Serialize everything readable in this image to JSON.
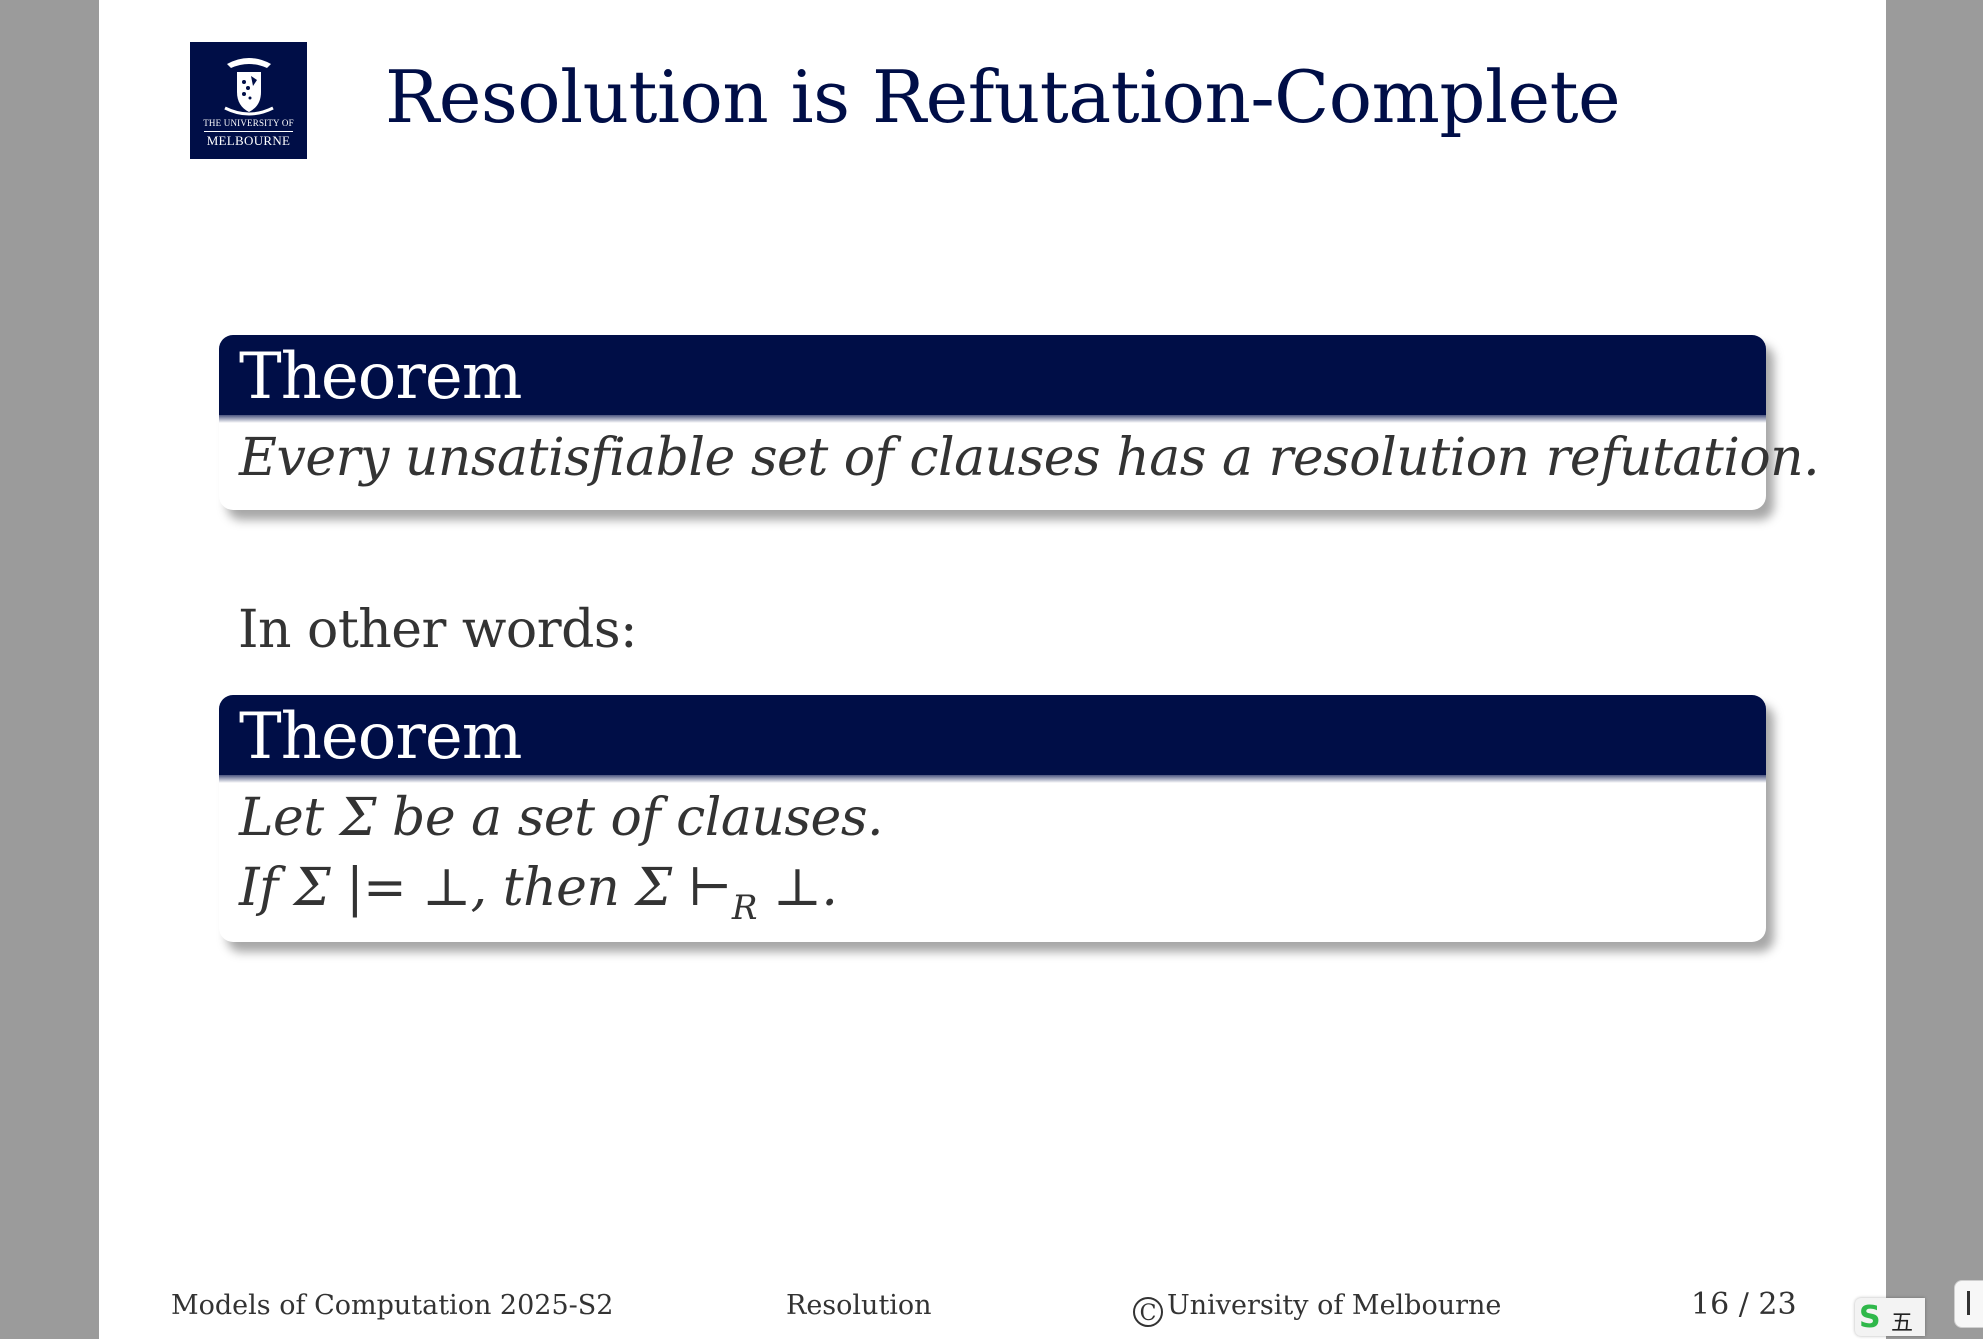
{
  "logo": {
    "line1": "THE UNIVERSITY OF",
    "line2": "MELBOURNE"
  },
  "title": "Resolution is Refutation-Complete",
  "theorem1": {
    "heading": "Theorem",
    "body": "Every unsatisfiable set of clauses has a resolution refutation."
  },
  "transition": "In other words:",
  "theorem2": {
    "heading": "Theorem",
    "line1": "Let Σ be a set of clauses.",
    "line2_main": "If Σ |= ⊥, then Σ ⊢",
    "line2_sub": "R",
    "line2_tail": " ⊥."
  },
  "footer": {
    "course": "Models of Computation 2025-S2",
    "section": "Resolution",
    "copyright_symbol": "C",
    "institution": "University of Melbourne",
    "page": "16 / 23"
  },
  "ime": {
    "logo": "S",
    "mode": "五"
  },
  "colors": {
    "brand_navy": "#000e47",
    "text": "#333333",
    "background": "#9b9b9b"
  }
}
